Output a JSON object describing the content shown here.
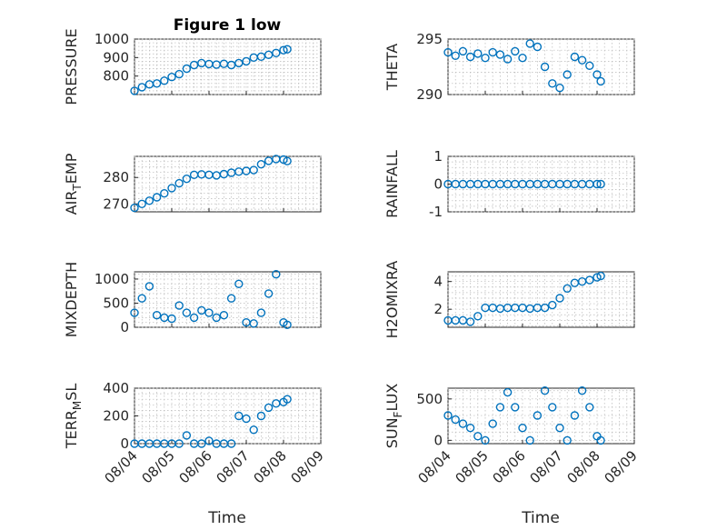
{
  "figure": {
    "title": "Figure 1 low",
    "xlabel": "Time"
  },
  "chart_data": [
    {
      "type": "scatter",
      "ylabel": "PRESSURE",
      "ylim": [
        700,
        1000
      ],
      "yticks": [
        800,
        900,
        1000
      ],
      "xticks": [
        "08/04",
        "08/05",
        "08/06",
        "08/07",
        "08/08",
        "08/09"
      ],
      "xlim": [
        0,
        5
      ],
      "grid": true,
      "marker": "circle",
      "color": "#0072BD",
      "x": [
        0.0,
        0.2,
        0.4,
        0.6,
        0.8,
        1.0,
        1.2,
        1.4,
        1.6,
        1.8,
        2.0,
        2.2,
        2.4,
        2.6,
        2.8,
        3.0,
        3.2,
        3.4,
        3.6,
        3.8,
        4.0,
        4.1
      ],
      "y": [
        720,
        740,
        755,
        760,
        775,
        795,
        810,
        840,
        860,
        870,
        865,
        862,
        866,
        860,
        870,
        880,
        900,
        905,
        915,
        925,
        940,
        945
      ]
    },
    {
      "type": "scatter",
      "ylabel": "THETA",
      "ylim": [
        290,
        295
      ],
      "yticks": [
        290,
        295
      ],
      "xticks": [
        "08/04",
        "08/05",
        "08/06",
        "08/07",
        "08/08",
        "08/09"
      ],
      "xlim": [
        0,
        5
      ],
      "grid": true,
      "marker": "circle",
      "color": "#0072BD",
      "x": [
        0.0,
        0.2,
        0.4,
        0.6,
        0.8,
        1.0,
        1.2,
        1.4,
        1.6,
        1.8,
        2.0,
        2.2,
        2.4,
        2.6,
        2.8,
        3.0,
        3.2,
        3.4,
        3.6,
        3.8,
        4.0,
        4.1
      ],
      "y": [
        293.8,
        293.5,
        293.9,
        293.4,
        293.7,
        293.3,
        293.8,
        293.6,
        293.2,
        293.9,
        293.3,
        294.6,
        294.3,
        292.5,
        291.0,
        290.6,
        291.8,
        293.4,
        293.1,
        292.6,
        291.8,
        291.2
      ]
    },
    {
      "type": "scatter",
      "ylabel": "AIR_TEMP",
      "ylim": [
        267,
        288
      ],
      "yticks": [
        270,
        280
      ],
      "xticks": [
        "08/04",
        "08/05",
        "08/06",
        "08/07",
        "08/08",
        "08/09"
      ],
      "xlim": [
        0,
        5
      ],
      "grid": true,
      "marker": "circle",
      "color": "#0072BD",
      "x": [
        0.0,
        0.2,
        0.4,
        0.6,
        0.8,
        1.0,
        1.2,
        1.4,
        1.6,
        1.8,
        2.0,
        2.2,
        2.4,
        2.6,
        2.8,
        3.0,
        3.2,
        3.4,
        3.6,
        3.8,
        4.0,
        4.1
      ],
      "y": [
        268.5,
        270.0,
        271.2,
        272.5,
        274.0,
        276.0,
        277.8,
        279.5,
        281.0,
        281.2,
        281.0,
        280.8,
        281.3,
        281.8,
        282.2,
        282.5,
        282.8,
        285.0,
        286.3,
        287.0,
        286.8,
        286.2
      ]
    },
    {
      "type": "scatter",
      "ylabel": "RAINFALL",
      "ylim": [
        -1,
        1
      ],
      "yticks": [
        -1,
        0,
        1
      ],
      "xticks": [
        "08/04",
        "08/05",
        "08/06",
        "08/07",
        "08/08",
        "08/09"
      ],
      "xlim": [
        0,
        5
      ],
      "grid": true,
      "marker": "circle",
      "color": "#0072BD",
      "x": [
        0.0,
        0.2,
        0.4,
        0.6,
        0.8,
        1.0,
        1.2,
        1.4,
        1.6,
        1.8,
        2.0,
        2.2,
        2.4,
        2.6,
        2.8,
        3.0,
        3.2,
        3.4,
        3.6,
        3.8,
        4.0,
        4.1
      ],
      "y": [
        0,
        0,
        0,
        0,
        0,
        0,
        0,
        0,
        0,
        0,
        0,
        0,
        0,
        0,
        0,
        0,
        0,
        0,
        0,
        0,
        0,
        0
      ]
    },
    {
      "type": "scatter",
      "ylabel": "MIXDEPTH",
      "ylim": [
        0,
        1150
      ],
      "yticks": [
        0,
        500,
        1000
      ],
      "xticks": [
        "08/04",
        "08/05",
        "08/06",
        "08/07",
        "08/08",
        "08/09"
      ],
      "xlim": [
        0,
        5
      ],
      "grid": true,
      "marker": "circle",
      "color": "#0072BD",
      "x": [
        0.0,
        0.2,
        0.4,
        0.6,
        0.8,
        1.0,
        1.2,
        1.4,
        1.6,
        1.8,
        2.0,
        2.2,
        2.4,
        2.6,
        2.8,
        3.0,
        3.2,
        3.4,
        3.6,
        3.8,
        4.0,
        4.1
      ],
      "y": [
        300,
        600,
        850,
        250,
        200,
        180,
        450,
        300,
        200,
        350,
        300,
        200,
        250,
        600,
        900,
        100,
        80,
        300,
        700,
        1100,
        100,
        50
      ]
    },
    {
      "type": "scatter",
      "ylabel": "H2OMIXRA",
      "ylim": [
        0.7,
        4.7
      ],
      "yticks": [
        2,
        4
      ],
      "xticks": [
        "08/04",
        "08/05",
        "08/06",
        "08/07",
        "08/08",
        "08/09"
      ],
      "xlim": [
        0,
        5
      ],
      "grid": true,
      "marker": "circle",
      "color": "#0072BD",
      "x": [
        0.0,
        0.2,
        0.4,
        0.6,
        0.8,
        1.0,
        1.2,
        1.4,
        1.6,
        1.8,
        2.0,
        2.2,
        2.4,
        2.6,
        2.8,
        3.0,
        3.2,
        3.4,
        3.6,
        3.8,
        4.0,
        4.1
      ],
      "y": [
        1.2,
        1.2,
        1.2,
        1.1,
        1.5,
        2.1,
        2.1,
        2.05,
        2.1,
        2.1,
        2.1,
        2.05,
        2.1,
        2.1,
        2.3,
        2.8,
        3.5,
        3.9,
        4.0,
        4.1,
        4.3,
        4.4
      ]
    },
    {
      "type": "scatter",
      "ylabel": "TERR_MSL",
      "ylim": [
        0,
        400
      ],
      "yticks": [
        0,
        200,
        400
      ],
      "xticks": [
        "08/04",
        "08/05",
        "08/06",
        "08/07",
        "08/08",
        "08/09"
      ],
      "xlim": [
        0,
        5
      ],
      "grid": true,
      "marker": "circle",
      "color": "#0072BD",
      "x": [
        0.0,
        0.2,
        0.4,
        0.6,
        0.8,
        1.0,
        1.2,
        1.4,
        1.6,
        1.8,
        2.0,
        2.2,
        2.4,
        2.6,
        2.8,
        3.0,
        3.2,
        3.4,
        3.6,
        3.8,
        4.0,
        4.1
      ],
      "y": [
        0,
        0,
        0,
        0,
        0,
        0,
        0,
        60,
        0,
        0,
        20,
        0,
        0,
        0,
        200,
        180,
        100,
        200,
        260,
        290,
        300,
        320
      ]
    },
    {
      "type": "scatter",
      "ylabel": "SUN_FLUX",
      "ylim": [
        -40,
        630
      ],
      "yticks": [
        0,
        500
      ],
      "xticks": [
        "08/04",
        "08/05",
        "08/06",
        "08/07",
        "08/08",
        "08/09"
      ],
      "xlim": [
        0,
        5
      ],
      "grid": true,
      "marker": "circle",
      "color": "#0072BD",
      "x": [
        0.0,
        0.2,
        0.4,
        0.6,
        0.8,
        1.0,
        1.2,
        1.4,
        1.6,
        1.8,
        2.0,
        2.2,
        2.4,
        2.6,
        2.8,
        3.0,
        3.2,
        3.4,
        3.6,
        3.8,
        4.0,
        4.1
      ],
      "y": [
        300,
        250,
        200,
        150,
        50,
        0,
        200,
        400,
        580,
        400,
        150,
        0,
        300,
        600,
        400,
        150,
        0,
        300,
        600,
        400,
        50,
        0
      ]
    }
  ]
}
